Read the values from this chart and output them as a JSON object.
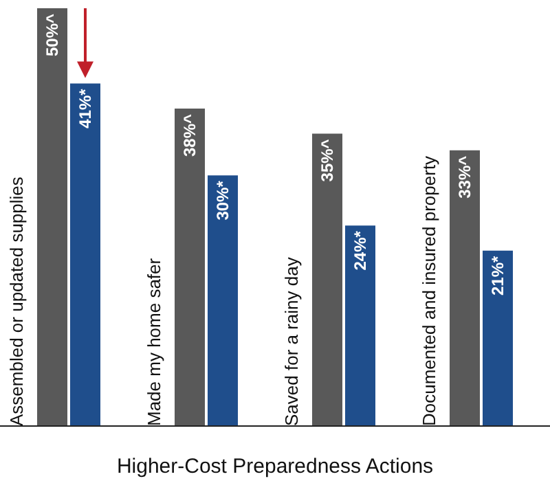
{
  "chart_data": {
    "type": "bar",
    "xlabel": "Higher-Cost Preparedness Actions",
    "categories": [
      "Assembled or updated supplies",
      "Made my home safer",
      "Saved for a rainy day",
      "Documented and insured property"
    ],
    "series": [
      {
        "color": "#595959",
        "values": [
          50,
          38,
          35,
          33
        ],
        "value_labels": [
          "50%^",
          "38%^",
          "35%^",
          "33%^"
        ]
      },
      {
        "color": "#1f4e8c",
        "values": [
          41,
          30,
          24,
          21
        ],
        "value_labels": [
          "41%*",
          "30%*",
          "24%*",
          "21%*"
        ]
      }
    ]
  }
}
